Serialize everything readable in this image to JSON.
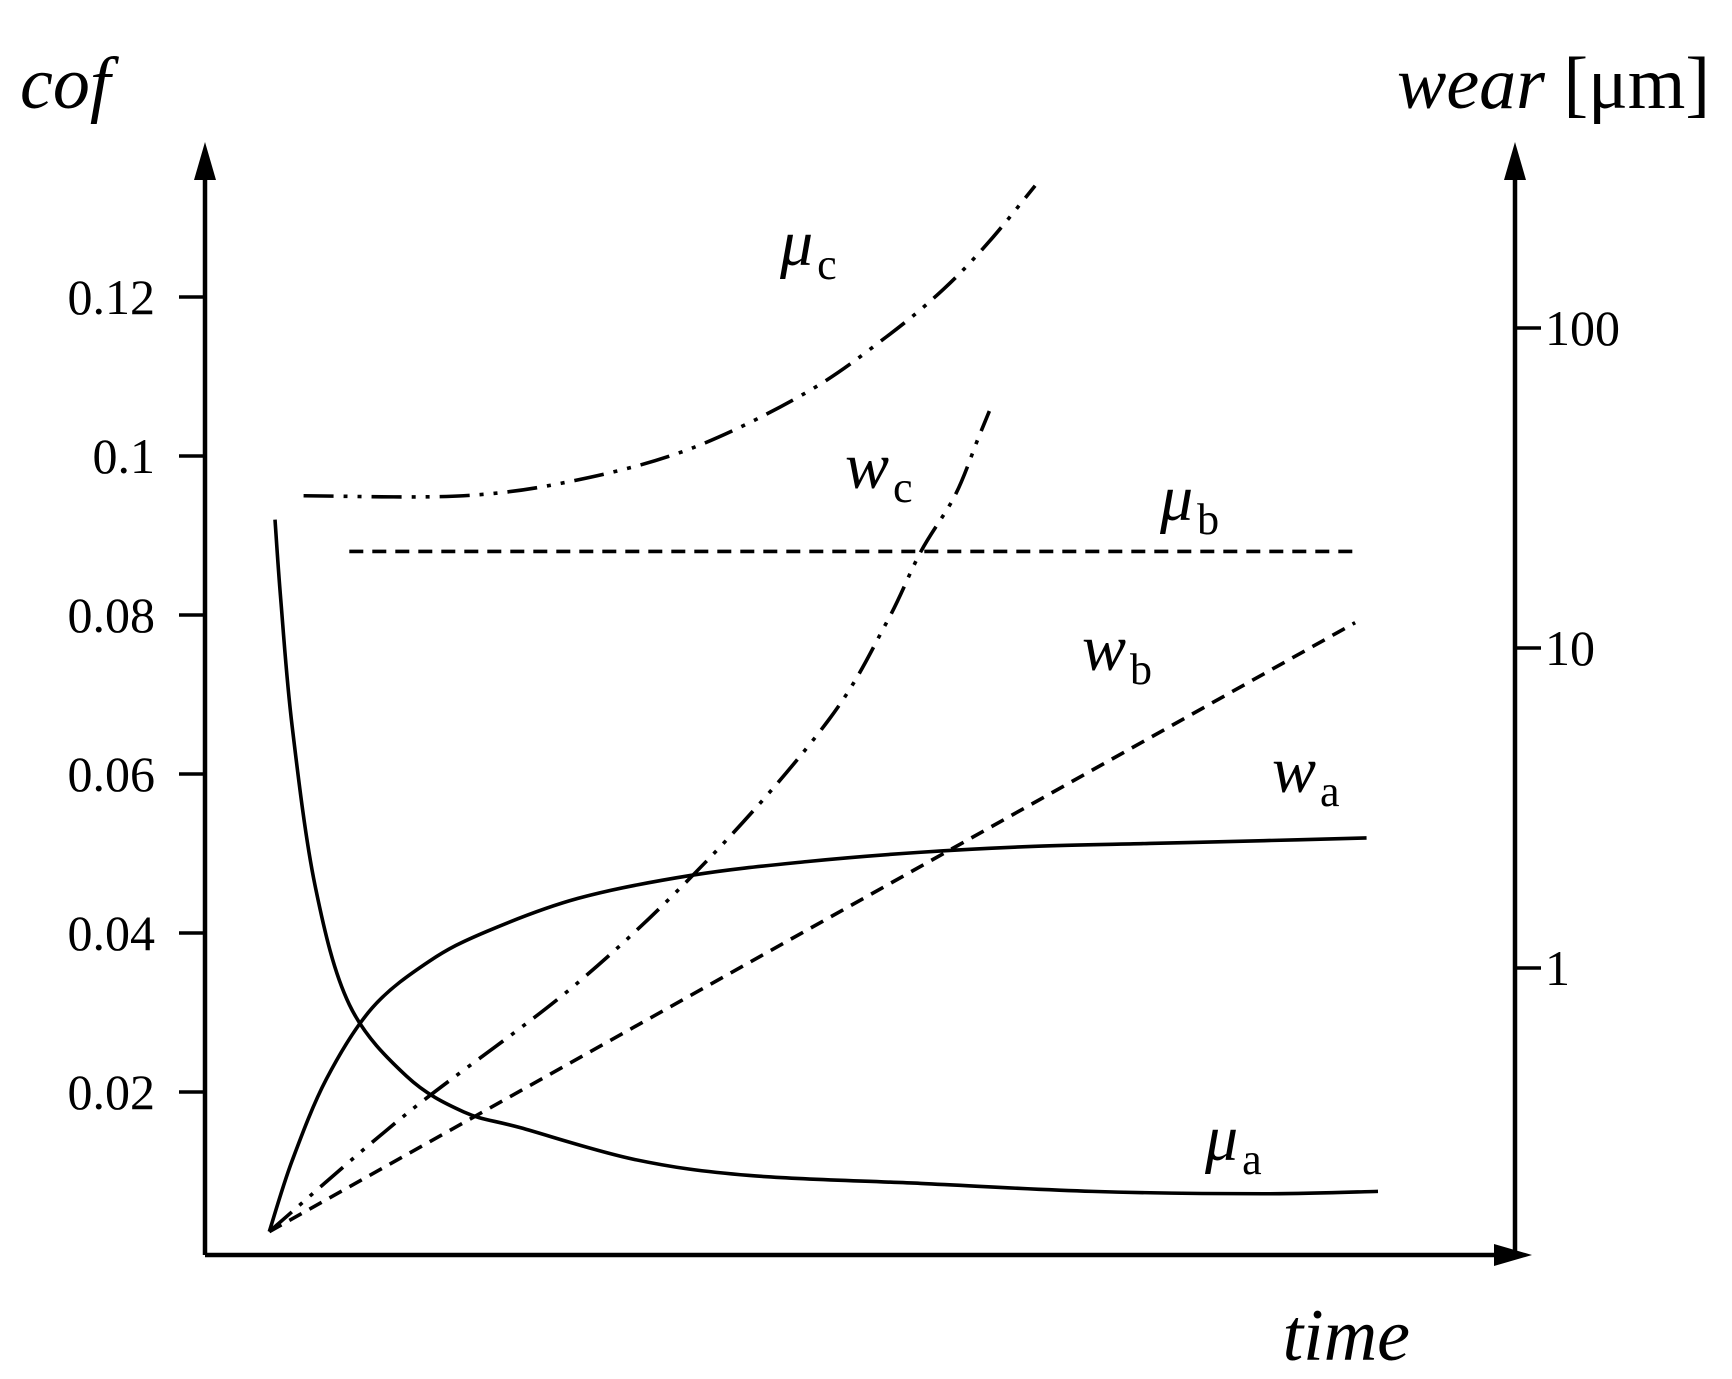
{
  "chart_data": {
    "type": "line",
    "left_axis_label": "cof",
    "right_axis_label": "wear",
    "right_axis_unit": "[μm]",
    "x_axis_label": "time",
    "left_axis": {
      "ticks": [
        "0.02",
        "0.04",
        "0.06",
        "0.08",
        "0.1",
        "0.12"
      ],
      "tick_values": [
        0.02,
        0.04,
        0.06,
        0.08,
        0.1,
        0.12
      ],
      "range": [
        0,
        0.14
      ],
      "scale": "linear"
    },
    "right_axis": {
      "ticks": [
        "1",
        "10",
        "100"
      ],
      "tick_values": [
        1,
        10,
        100
      ],
      "scale": "log",
      "range": [
        0.1,
        200
      ]
    },
    "x_axis": {
      "ticks": [],
      "range": [
        0,
        1
      ]
    },
    "grid": false,
    "legend": "none",
    "series": [
      {
        "id": "mu_a",
        "label_main": "μ",
        "label_sub": "a",
        "axis": "left",
        "style": "solid",
        "x": [
          0.035,
          0.04,
          0.05,
          0.07,
          0.1,
          0.15,
          0.2,
          0.25,
          0.35,
          0.45,
          0.6,
          0.75,
          0.9,
          1.0
        ],
        "y": [
          0.092,
          0.082,
          0.066,
          0.046,
          0.031,
          0.022,
          0.0175,
          0.0155,
          0.0115,
          0.0095,
          0.0085,
          0.0075,
          0.0072,
          0.0075
        ]
      },
      {
        "id": "w_a",
        "label_main": "w",
        "label_sub": "a",
        "axis": "right",
        "style": "solid",
        "x": [
          0.03,
          0.05,
          0.08,
          0.12,
          0.17,
          0.22,
          0.3,
          0.4,
          0.5,
          0.6,
          0.7,
          0.8,
          0.9,
          0.99
        ],
        "y": [
          0.15,
          0.25,
          0.45,
          0.75,
          1.05,
          1.3,
          1.65,
          1.95,
          2.15,
          2.3,
          2.4,
          2.45,
          2.5,
          2.55
        ]
      },
      {
        "id": "mu_b",
        "label_main": "μ",
        "label_sub": "b",
        "axis": "left",
        "style": "dashed",
        "x": [
          0.1,
          0.98
        ],
        "y": [
          0.088,
          0.088
        ]
      },
      {
        "id": "w_b",
        "label_main": "w",
        "label_sub": "b",
        "axis": "right",
        "style": "dashed",
        "x": [
          0.03,
          0.98
        ],
        "y": [
          0.15,
          12
        ]
      },
      {
        "id": "mu_c",
        "label_main": "μ",
        "label_sub": "c",
        "axis": "left",
        "style": "dash-dot-dot",
        "x": [
          0.06,
          0.2,
          0.3,
          0.4,
          0.5,
          0.57,
          0.62,
          0.66,
          0.7
        ],
        "y": [
          0.095,
          0.095,
          0.097,
          0.101,
          0.108,
          0.115,
          0.121,
          0.127,
          0.134
        ]
      },
      {
        "id": "w_c",
        "label_main": "w",
        "label_sub": "c",
        "axis": "right",
        "style": "dash-dot-dot",
        "x": [
          0.03,
          0.15,
          0.3,
          0.42,
          0.52,
          0.57,
          0.6,
          0.63,
          0.65,
          0.66
        ],
        "y": [
          0.15,
          0.35,
          0.9,
          2.3,
          6,
          12,
          20,
          30,
          45,
          55
        ]
      }
    ]
  }
}
